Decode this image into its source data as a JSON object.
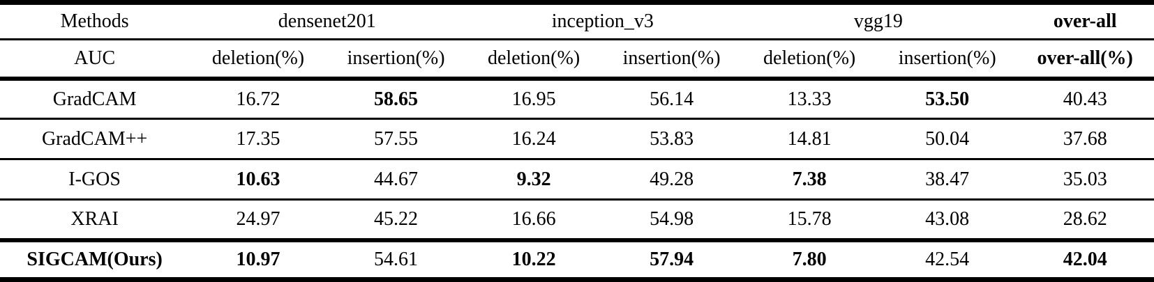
{
  "table": {
    "header": {
      "methods_label": "Methods",
      "model_groups": {
        "0": "densenet201",
        "1": "inception_v3",
        "2": "vgg19"
      },
      "overall_label": "over-all",
      "metric_row_label": "AUC",
      "metric_columns": {
        "0": "deletion(%)",
        "1": "insertion(%)",
        "2": "deletion(%)",
        "3": "insertion(%)",
        "4": "deletion(%)",
        "5": "insertion(%)"
      },
      "overall_metric_label": "over-all(%)"
    },
    "rows": [
      {
        "method": "GradCAM",
        "method_bold": false,
        "values": [
          "16.72",
          "58.65",
          "16.95",
          "56.14",
          "13.33",
          "53.50",
          "40.43"
        ],
        "bold": [
          false,
          true,
          false,
          false,
          false,
          true,
          false
        ]
      },
      {
        "method": "GradCAM++",
        "method_bold": false,
        "values": [
          "17.35",
          "57.55",
          "16.24",
          "53.83",
          "14.81",
          "50.04",
          "37.68"
        ],
        "bold": [
          false,
          false,
          false,
          false,
          false,
          false,
          false
        ]
      },
      {
        "method": "I-GOS",
        "method_bold": false,
        "values": [
          "10.63",
          "44.67",
          "9.32",
          "49.28",
          "7.38",
          "38.47",
          "35.03"
        ],
        "bold": [
          true,
          false,
          true,
          false,
          true,
          false,
          false
        ]
      },
      {
        "method": "XRAI",
        "method_bold": false,
        "values": [
          "24.97",
          "45.22",
          "16.66",
          "54.98",
          "15.78",
          "43.08",
          "28.62"
        ],
        "bold": [
          false,
          false,
          false,
          false,
          false,
          false,
          false
        ]
      },
      {
        "method": "SIGCAM(Ours)",
        "method_bold": true,
        "values": [
          "10.97",
          "54.61",
          "10.22",
          "57.94",
          "7.80",
          "42.54",
          "42.04"
        ],
        "bold": [
          true,
          false,
          true,
          true,
          true,
          false,
          true
        ]
      }
    ],
    "colors": {
      "text": "#000000",
      "background": "#ffffff",
      "rule": "#000000"
    }
  }
}
